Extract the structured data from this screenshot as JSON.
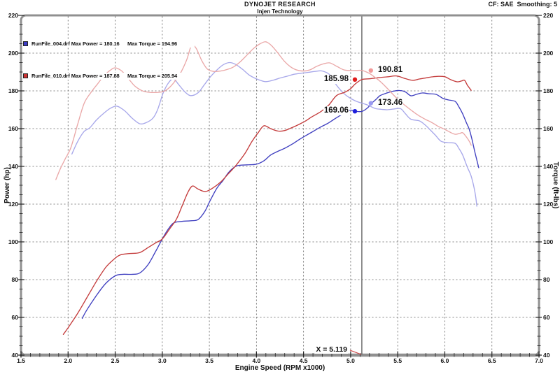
{
  "header": {
    "title": "DYNOJET RESEARCH",
    "subtitle": "Injen Technology",
    "correction": "CF: SAE  Smoothing: 5"
  },
  "legend": {
    "rows": [
      {
        "file": "RunFile_004.drf",
        "power": "Max Power = 180.16",
        "torque": "Max Torque = 194.96",
        "color": "#3c3cc4"
      },
      {
        "file": "RunFile_010.drf",
        "power": "Max Power = 187.88",
        "torque": "Max Torque = 205.94",
        "color": "#cc3434"
      }
    ]
  },
  "chart_data": {
    "type": "line",
    "title": "DYNOJET RESEARCH",
    "xlabel": "Engine Speed (RPM x1000)",
    "ylabel_left": "Power (hp)",
    "ylabel_right": "Torque (ft-lbs)",
    "xlim": [
      1.5,
      7.0
    ],
    "ylim": [
      40,
      220
    ],
    "xtick_step": 0.5,
    "xtick_minor": 0.1,
    "ytick_step": 20,
    "ytick_minor": 5,
    "grid": true,
    "grid_color": "#606060",
    "border_color": "#909090",
    "cursor": {
      "x": 5.119,
      "label": "X = 5.119",
      "line_color": "#4a4a4a",
      "pointer_color": "#cc4444"
    },
    "point_labels": [
      {
        "label": "185.98",
        "rpm": 5.045,
        "value": 186.0,
        "color": "#e01c1c",
        "side": "left",
        "series": "RunFile_010 Power"
      },
      {
        "label": "190.81",
        "rpm": 5.215,
        "value": 190.8,
        "color": "#f29a9a",
        "side": "right",
        "series": "RunFile_010 Torque"
      },
      {
        "label": "169.06",
        "rpm": 5.045,
        "value": 169.2,
        "color": "#2020dc",
        "side": "left",
        "series": "RunFile_004 Power"
      },
      {
        "label": "173.46",
        "rpm": 5.215,
        "value": 173.5,
        "color": "#9a9af2",
        "side": "right",
        "series": "RunFile_004 Torque"
      }
    ],
    "series": [
      {
        "name": "RunFile_004 Power (hp)",
        "color": "#4040c0",
        "points": [
          [
            2.15,
            59.5
          ],
          [
            2.2,
            64
          ],
          [
            2.3,
            71.5
          ],
          [
            2.4,
            78
          ],
          [
            2.5,
            82
          ],
          [
            2.58,
            82.8
          ],
          [
            2.68,
            82.8
          ],
          [
            2.76,
            83.5
          ],
          [
            2.85,
            88
          ],
          [
            2.93,
            95
          ],
          [
            3.0,
            101.5
          ],
          [
            3.06,
            106.5
          ],
          [
            3.12,
            110
          ],
          [
            3.2,
            110.8
          ],
          [
            3.3,
            111.2
          ],
          [
            3.38,
            111.8
          ],
          [
            3.45,
            116
          ],
          [
            3.51,
            122
          ],
          [
            3.58,
            128.5
          ],
          [
            3.64,
            132.2
          ],
          [
            3.7,
            136.5
          ],
          [
            3.75,
            139
          ],
          [
            3.8,
            140.4
          ],
          [
            3.9,
            140.8
          ],
          [
            4.0,
            141.2
          ],
          [
            4.08,
            143
          ],
          [
            4.15,
            146
          ],
          [
            4.22,
            147.8
          ],
          [
            4.3,
            149.6
          ],
          [
            4.38,
            151.8
          ],
          [
            4.45,
            154.1
          ],
          [
            4.52,
            156.2
          ],
          [
            4.6,
            158.5
          ],
          [
            4.68,
            160.8
          ],
          [
            4.75,
            162.6
          ],
          [
            4.82,
            164.8
          ],
          [
            4.89,
            167
          ],
          [
            4.95,
            168.8
          ],
          [
            5.0,
            169.8
          ],
          [
            5.05,
            169.2
          ],
          [
            5.12,
            169.1
          ],
          [
            5.18,
            171
          ],
          [
            5.22,
            173.3
          ],
          [
            5.27,
            175.5
          ],
          [
            5.31,
            177.4
          ],
          [
            5.38,
            178.8
          ],
          [
            5.45,
            179.8
          ],
          [
            5.52,
            180.2
          ],
          [
            5.58,
            179.5
          ],
          [
            5.64,
            177.4
          ],
          [
            5.7,
            178.2
          ],
          [
            5.76,
            178.9
          ],
          [
            5.83,
            178.5
          ],
          [
            5.91,
            178.1
          ],
          [
            5.98,
            176
          ],
          [
            6.04,
            175.2
          ],
          [
            6.11,
            174.4
          ],
          [
            6.15,
            171.5
          ],
          [
            6.19,
            167.8
          ],
          [
            6.23,
            163
          ],
          [
            6.26,
            159.6
          ],
          [
            6.29,
            154
          ],
          [
            6.32,
            147.4
          ],
          [
            6.36,
            139.3
          ]
        ]
      },
      {
        "name": "RunFile_004 Torque (ft-lbs)",
        "color": "#a8a8ea",
        "points": [
          [
            2.04,
            146.5
          ],
          [
            2.1,
            153
          ],
          [
            2.17,
            158.5
          ],
          [
            2.23,
            160.4
          ],
          [
            2.3,
            164.5
          ],
          [
            2.38,
            168.2
          ],
          [
            2.45,
            170.8
          ],
          [
            2.52,
            171.9
          ],
          [
            2.6,
            169.5
          ],
          [
            2.68,
            165.5
          ],
          [
            2.76,
            162.6
          ],
          [
            2.83,
            163.2
          ],
          [
            2.9,
            165.5
          ],
          [
            2.95,
            170
          ],
          [
            3.01,
            179
          ],
          [
            3.07,
            184.5
          ],
          [
            3.12,
            186.3
          ],
          [
            3.18,
            183
          ],
          [
            3.24,
            179.5
          ],
          [
            3.3,
            177.5
          ],
          [
            3.38,
            179
          ],
          [
            3.45,
            183.5
          ],
          [
            3.52,
            188
          ],
          [
            3.6,
            192
          ],
          [
            3.66,
            194.2
          ],
          [
            3.72,
            195
          ],
          [
            3.78,
            194
          ],
          [
            3.85,
            191.5
          ],
          [
            3.92,
            188.5
          ],
          [
            3.98,
            186.8
          ],
          [
            4.04,
            185.6
          ],
          [
            4.1,
            184.9
          ],
          [
            4.18,
            185.7
          ],
          [
            4.25,
            186.8
          ],
          [
            4.33,
            187.8
          ],
          [
            4.4,
            188.8
          ],
          [
            4.47,
            189.3
          ],
          [
            4.55,
            189.8
          ],
          [
            4.62,
            190.3
          ],
          [
            4.7,
            190.5
          ],
          [
            4.78,
            188.5
          ],
          [
            4.84,
            183.7
          ],
          [
            4.92,
            179
          ],
          [
            4.99,
            176.3
          ],
          [
            5.06,
            174.5
          ],
          [
            5.12,
            173.5
          ],
          [
            5.19,
            172.3
          ],
          [
            5.26,
            170.7
          ],
          [
            5.33,
            170.2
          ],
          [
            5.39,
            170
          ],
          [
            5.46,
            170.4
          ],
          [
            5.53,
            170.6
          ],
          [
            5.58,
            168
          ],
          [
            5.64,
            165
          ],
          [
            5.73,
            164.1
          ],
          [
            5.79,
            162
          ],
          [
            5.84,
            159.6
          ],
          [
            5.9,
            156.5
          ],
          [
            5.96,
            153.3
          ],
          [
            6.03,
            152.6
          ],
          [
            6.11,
            152.2
          ],
          [
            6.15,
            149.5
          ],
          [
            6.19,
            146
          ],
          [
            6.24,
            139.5
          ],
          [
            6.28,
            134.8
          ],
          [
            6.32,
            126.3
          ],
          [
            6.34,
            118.9
          ]
        ]
      },
      {
        "name": "RunFile_010 Power (hp)",
        "color": "#c43c3c",
        "points": [
          [
            1.95,
            51
          ],
          [
            2.0,
            54.5
          ],
          [
            2.1,
            62
          ],
          [
            2.2,
            70.5
          ],
          [
            2.3,
            79
          ],
          [
            2.4,
            86.5
          ],
          [
            2.48,
            90.5
          ],
          [
            2.55,
            93
          ],
          [
            2.65,
            93.8
          ],
          [
            2.76,
            94.3
          ],
          [
            2.85,
            97
          ],
          [
            2.93,
            99.5
          ],
          [
            3.0,
            101.5
          ],
          [
            3.08,
            107
          ],
          [
            3.15,
            112
          ],
          [
            3.21,
            119
          ],
          [
            3.27,
            126
          ],
          [
            3.32,
            129.6
          ],
          [
            3.38,
            128
          ],
          [
            3.46,
            126.7
          ],
          [
            3.55,
            129
          ],
          [
            3.63,
            132.2
          ],
          [
            3.7,
            136
          ],
          [
            3.78,
            140.4
          ],
          [
            3.88,
            147
          ],
          [
            3.95,
            153
          ],
          [
            4.02,
            158
          ],
          [
            4.08,
            161.5
          ],
          [
            4.15,
            160
          ],
          [
            4.23,
            158.7
          ],
          [
            4.3,
            159
          ],
          [
            4.38,
            160.6
          ],
          [
            4.45,
            162.2
          ],
          [
            4.52,
            164
          ],
          [
            4.58,
            166
          ],
          [
            4.65,
            168
          ],
          [
            4.7,
            169.6
          ],
          [
            4.77,
            172.6
          ],
          [
            4.85,
            177.5
          ],
          [
            4.94,
            179.3
          ],
          [
            5.0,
            181.2
          ],
          [
            5.05,
            183.7
          ],
          [
            5.12,
            186
          ],
          [
            5.2,
            186.4
          ],
          [
            5.3,
            187
          ],
          [
            5.4,
            187.5
          ],
          [
            5.49,
            187.9
          ],
          [
            5.58,
            186.5
          ],
          [
            5.66,
            185.6
          ],
          [
            5.73,
            186.3
          ],
          [
            5.8,
            186.9
          ],
          [
            5.86,
            187.4
          ],
          [
            5.93,
            187.7
          ],
          [
            6.0,
            187.5
          ],
          [
            6.06,
            186
          ],
          [
            6.13,
            184.8
          ],
          [
            6.18,
            185.3
          ],
          [
            6.21,
            185.6
          ],
          [
            6.24,
            183
          ],
          [
            6.28,
            180.3
          ]
        ]
      },
      {
        "name": "RunFile_010 Torque (ft-lbs)",
        "color": "#eaa8a8",
        "points": [
          [
            1.87,
            133
          ],
          [
            1.92,
            139
          ],
          [
            1.97,
            144
          ],
          [
            2.03,
            150
          ],
          [
            2.1,
            162
          ],
          [
            2.17,
            173.3
          ],
          [
            2.24,
            179
          ],
          [
            2.31,
            183.5
          ],
          [
            2.38,
            188
          ],
          [
            2.45,
            191
          ],
          [
            2.5,
            192.2
          ],
          [
            2.57,
            190.5
          ],
          [
            2.64,
            186.5
          ],
          [
            2.71,
            182.5
          ],
          [
            2.79,
            180
          ],
          [
            2.87,
            179.2
          ],
          [
            2.95,
            179.2
          ],
          [
            3.02,
            179.8
          ],
          [
            3.08,
            182
          ],
          [
            3.14,
            185.5
          ],
          [
            3.2,
            190
          ],
          [
            3.26,
            196.5
          ],
          [
            3.31,
            204
          ],
          [
            3.36,
            202.5
          ],
          [
            3.42,
            196
          ],
          [
            3.48,
            191.5
          ],
          [
            3.55,
            190.3
          ],
          [
            3.62,
            190.5
          ],
          [
            3.7,
            191.5
          ],
          [
            3.76,
            192.8
          ],
          [
            3.83,
            195.5
          ],
          [
            3.9,
            199
          ],
          [
            3.97,
            202.5
          ],
          [
            4.04,
            205
          ],
          [
            4.1,
            206
          ],
          [
            4.16,
            204
          ],
          [
            4.22,
            200.5
          ],
          [
            4.3,
            195.5
          ],
          [
            4.36,
            192.8
          ],
          [
            4.42,
            191.2
          ],
          [
            4.5,
            190.5
          ],
          [
            4.57,
            191.2
          ],
          [
            4.64,
            193
          ],
          [
            4.71,
            194.3
          ],
          [
            4.78,
            194.8
          ],
          [
            4.86,
            192.8
          ],
          [
            4.93,
            191.1
          ],
          [
            5.0,
            190.8
          ],
          [
            5.06,
            190.8
          ],
          [
            5.12,
            190.8
          ],
          [
            5.19,
            189.5
          ],
          [
            5.25,
            187.5
          ],
          [
            5.31,
            185.2
          ],
          [
            5.38,
            181.8
          ],
          [
            5.45,
            178.1
          ],
          [
            5.51,
            175.2
          ],
          [
            5.57,
            172.6
          ],
          [
            5.65,
            169.5
          ],
          [
            5.72,
            167
          ],
          [
            5.79,
            165
          ],
          [
            5.86,
            163.3
          ],
          [
            5.93,
            161.2
          ],
          [
            6.0,
            159.6
          ],
          [
            6.06,
            158
          ],
          [
            6.11,
            157
          ],
          [
            6.16,
            157.5
          ],
          [
            6.19,
            157.8
          ],
          [
            6.23,
            155.5
          ],
          [
            6.26,
            153.3
          ],
          [
            6.28,
            151.2
          ]
        ]
      }
    ]
  }
}
